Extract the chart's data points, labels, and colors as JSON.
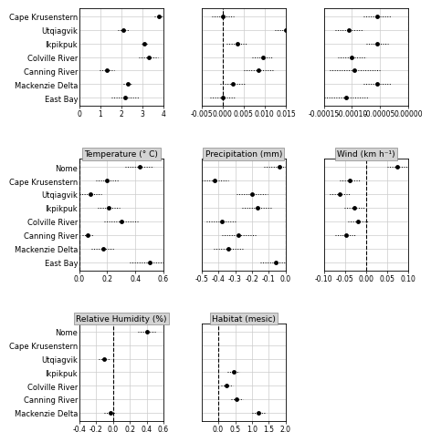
{
  "row1": {
    "panels": [
      {
        "title": null,
        "sites": [
          "Cape Krusenstern",
          "Utqiagvik",
          "Ikpikpuk",
          "Colville River",
          "Canning River",
          "Mackenzie Delta",
          "East Bay"
        ],
        "estimates": [
          3.8,
          2.1,
          3.1,
          3.3,
          1.3,
          2.3,
          2.2
        ],
        "ci_lo": [
          3.55,
          1.85,
          2.95,
          2.85,
          0.95,
          2.1,
          1.55
        ],
        "ci_hi": [
          4.05,
          2.35,
          3.25,
          3.75,
          1.65,
          2.5,
          2.85
        ],
        "xlim": [
          0,
          4
        ],
        "xticks": [
          0,
          1,
          2,
          3,
          4
        ],
        "xticklabels": [
          "0",
          "1",
          "2",
          "3",
          "4"
        ],
        "vline": null,
        "show_border": false
      },
      {
        "title": null,
        "sites": [
          "Cape Krusenstern",
          "Utqiagvik",
          "Ikpikpuk",
          "Colville River",
          "Canning River",
          "Mackenzie Delta",
          "East Bay"
        ],
        "estimates": [
          0.0001,
          0.015,
          0.0035,
          0.0095,
          0.0085,
          0.0025,
          0.0
        ],
        "ci_lo": [
          -0.0025,
          0.0125,
          0.001,
          0.007,
          0.005,
          -0.0005,
          -0.003
        ],
        "ci_hi": [
          0.0027,
          0.0175,
          0.006,
          0.012,
          0.012,
          0.0055,
          0.003
        ],
        "xlim": [
          -0.005,
          0.015
        ],
        "xticks": [
          -0.005,
          0.0,
          0.005,
          0.01,
          0.015
        ],
        "xticklabels": [
          "-0.005",
          "0.000",
          "0.005",
          "0.010",
          "0.015"
        ],
        "vline": 0.0,
        "show_border": false
      },
      {
        "title": null,
        "sites": [
          "Cape Krusenstern",
          "Utqiagvik",
          "Ikpikpuk",
          "Colville River",
          "Canning River",
          "Mackenzie Delta",
          "East Bay"
        ],
        "estimates": [
          -5.5e-05,
          -0.000105,
          -5.5e-05,
          -0.0001,
          -9.5e-05,
          -5.5e-05,
          -0.00011
        ],
        "ci_lo": [
          -8e-05,
          -0.00013,
          -7.5e-05,
          -0.000125,
          -0.00014,
          -8e-05,
          -0.00015
        ],
        "ci_hi": [
          -3e-05,
          -8e-05,
          -3.5e-05,
          -7.5e-05,
          -5e-05,
          -3e-05,
          -7e-05
        ],
        "xlim": [
          -0.00015,
          0.0
        ],
        "xticks": [
          -0.00015,
          -0.0001,
          -5e-05,
          0.0
        ],
        "xticklabels": [
          "-0.00015",
          "-0.00010",
          "-0.00005",
          "0.00000"
        ],
        "vline": 0.0,
        "show_border": false
      }
    ]
  },
  "row2": {
    "panels": [
      {
        "title": "Temperature (° C)",
        "sites": [
          "Nome",
          "Cape Krusenstern",
          "Utqiagvik",
          "Ikpikpuk",
          "Colville River",
          "Canning River",
          "Mackenzie Delta",
          "East Bay"
        ],
        "estimates": [
          0.43,
          0.2,
          0.08,
          0.21,
          0.3,
          0.06,
          0.17,
          0.5
        ],
        "ci_lo": [
          0.33,
          0.12,
          0.0,
          0.13,
          0.18,
          0.02,
          0.09,
          0.36
        ],
        "ci_hi": [
          0.53,
          0.28,
          0.16,
          0.29,
          0.42,
          0.1,
          0.25,
          0.64
        ],
        "xlim": [
          0.0,
          0.6
        ],
        "xticks": [
          0.0,
          0.2,
          0.4,
          0.6
        ],
        "xticklabels": [
          "0.0",
          "0.2",
          "0.4",
          "0.6"
        ],
        "vline": 0.0,
        "show_border": true
      },
      {
        "title": "Precipitation (mm)",
        "sites": [
          "Nome",
          "Cape Krusenstern",
          "Utqiagvik",
          "Ikpikpuk",
          "Colville River",
          "Canning River",
          "Mackenzie Delta",
          "East Bay"
        ],
        "estimates": [
          -0.04,
          -0.42,
          -0.2,
          -0.17,
          -0.38,
          -0.28,
          -0.34,
          -0.06
        ],
        "ci_lo": [
          -0.13,
          -0.5,
          -0.29,
          -0.26,
          -0.47,
          -0.38,
          -0.43,
          -0.15
        ],
        "ci_hi": [
          0.05,
          -0.34,
          -0.11,
          -0.08,
          -0.29,
          -0.18,
          -0.25,
          0.03
        ],
        "xlim": [
          -0.5,
          0.0
        ],
        "xticks": [
          -0.5,
          -0.4,
          -0.3,
          -0.2,
          -0.1,
          0.0
        ],
        "xticklabels": [
          "-0.5",
          "-0.4",
          "-0.3",
          "-0.2",
          "-0.1",
          "0.0"
        ],
        "vline": 0.0,
        "show_border": true
      },
      {
        "title": "Wind (km h⁻¹)",
        "sites": [
          "Nome",
          "Cape Krusenstern",
          "Utqiagvik",
          "Ikpikpuk",
          "Colville River",
          "Canning River",
          "Mackenzie Delta",
          "East Bay"
        ],
        "estimates": [
          0.075,
          -0.038,
          -0.062,
          -0.028,
          -0.018,
          -0.048,
          null,
          null
        ],
        "ci_lo": [
          0.05,
          -0.062,
          -0.086,
          -0.052,
          -0.042,
          -0.072,
          null,
          null
        ],
        "ci_hi": [
          0.1,
          -0.014,
          -0.038,
          -0.004,
          0.006,
          -0.024,
          null,
          null
        ],
        "xlim": [
          -0.1,
          0.1
        ],
        "xticks": [
          -0.1,
          -0.05,
          0.0,
          0.05,
          0.1
        ],
        "xticklabels": [
          "-0.10",
          "-0.05",
          "0.00",
          "0.05",
          "0.10"
        ],
        "vline": 0.0,
        "show_border": true
      }
    ]
  },
  "row3": {
    "panels": [
      {
        "title": "Relative Humidity (%)",
        "sites": [
          "Nome",
          "Cape Krusenstern",
          "Utqiagvik",
          "Ikpikpuk",
          "Colville River",
          "Canning River",
          "Mackenzie Delta"
        ],
        "estimates": [
          0.4,
          null,
          -0.1,
          null,
          null,
          null,
          -0.03
        ],
        "ci_lo": [
          0.3,
          null,
          -0.17,
          null,
          null,
          null,
          -0.1
        ],
        "ci_hi": [
          0.5,
          null,
          -0.03,
          null,
          null,
          null,
          0.04
        ],
        "xlim": [
          -0.4,
          0.6
        ],
        "xticks": [
          -0.4,
          -0.2,
          0.0,
          0.2,
          0.4,
          0.6
        ],
        "xticklabels": [
          "-0.4",
          "-0.2",
          "0.0",
          "0.2",
          "0.4",
          "0.6"
        ],
        "vline": 0.0,
        "show_border": true
      },
      {
        "title": "Habitat (mesic)",
        "sites": [
          "Nome",
          "Cape Krusenstern",
          "Utqiagvik",
          "Ikpikpuk",
          "Colville River",
          "Canning River",
          "Mackenzie Delta"
        ],
        "estimates": [
          null,
          null,
          null,
          0.45,
          0.25,
          0.55,
          1.2
        ],
        "ci_lo": [
          null,
          null,
          null,
          0.28,
          0.08,
          0.38,
          1.0
        ],
        "ci_hi": [
          null,
          null,
          null,
          0.62,
          0.42,
          0.72,
          1.4
        ],
        "xlim": [
          -0.5,
          2.0
        ],
        "xticks": [
          0.0,
          0.5,
          1.0,
          1.5,
          2.0
        ],
        "xticklabels": [
          "0.0",
          "0.5",
          "1.0",
          "1.5",
          "2.0"
        ],
        "vline": 0.0,
        "show_border": true
      }
    ]
  },
  "dot_color": "#000000",
  "dot_size": 3.5,
  "line_color": "#000000",
  "line_style": "dotted",
  "grid_color": "#cccccc",
  "bg_color": "#ffffff",
  "panel_title_bg": "#d3d3d3",
  "fontsize": 6.0
}
